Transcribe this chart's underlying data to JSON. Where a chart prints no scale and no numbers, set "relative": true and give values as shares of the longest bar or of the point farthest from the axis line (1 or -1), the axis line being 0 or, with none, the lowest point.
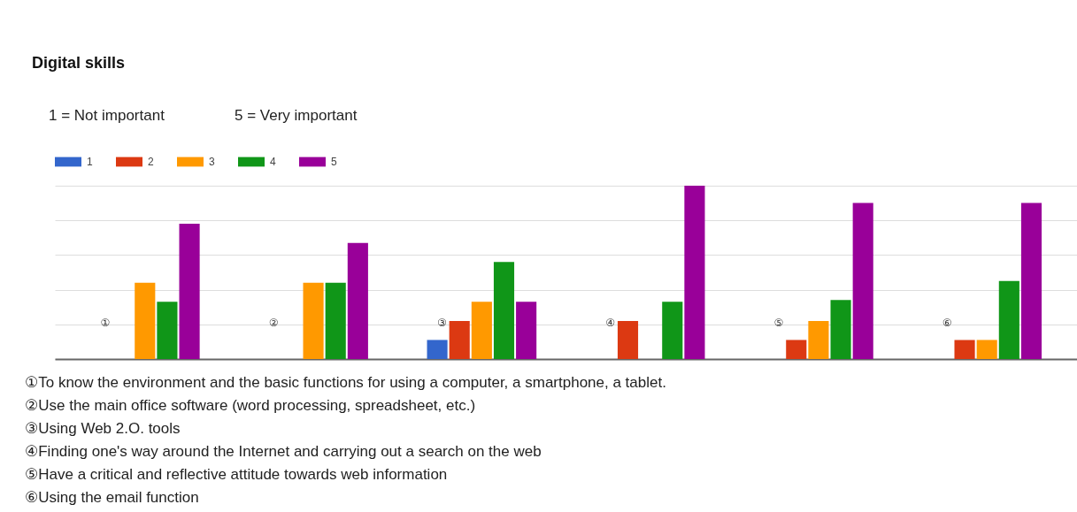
{
  "chart_data": {
    "type": "bar",
    "title": "Digital skills",
    "relative": true,
    "grid": "y",
    "legend": "top left",
    "categories": [
      "①",
      "②",
      "③",
      "④",
      "⑤",
      "⑥"
    ],
    "series": [
      {
        "name": "1",
        "color": "#3366cc",
        "values": [
          null,
          null,
          0.11,
          null,
          null,
          null
        ]
      },
      {
        "name": "2",
        "color": "#dc3912",
        "values": [
          null,
          null,
          0.22,
          0.22,
          0.11,
          0.11
        ]
      },
      {
        "name": "3",
        "color": "#ff9900",
        "values": [
          0.44,
          0.44,
          0.33,
          null,
          0.22,
          0.11
        ]
      },
      {
        "name": "4",
        "color": "#109618",
        "values": [
          0.33,
          0.44,
          0.56,
          0.33,
          0.34,
          0.45
        ]
      },
      {
        "name": "5",
        "color": "#990099",
        "values": [
          0.78,
          0.67,
          0.33,
          1,
          0.9,
          0.9
        ]
      }
    ],
    "annotations": [
      "1 = Not important",
      "5 = Very important",
      "①To know the environment and the basic functions for using a computer, a smartphone, a tablet.",
      "②Use the main office software (word processing, spreadsheet, etc.)",
      "③Using Web 2.O. tools",
      "④Finding one's way around the Internet and carrying out a search on the web",
      "⑤Have a critical and reflective attitude towards web information",
      "⑥Using the email function"
    ]
  }
}
